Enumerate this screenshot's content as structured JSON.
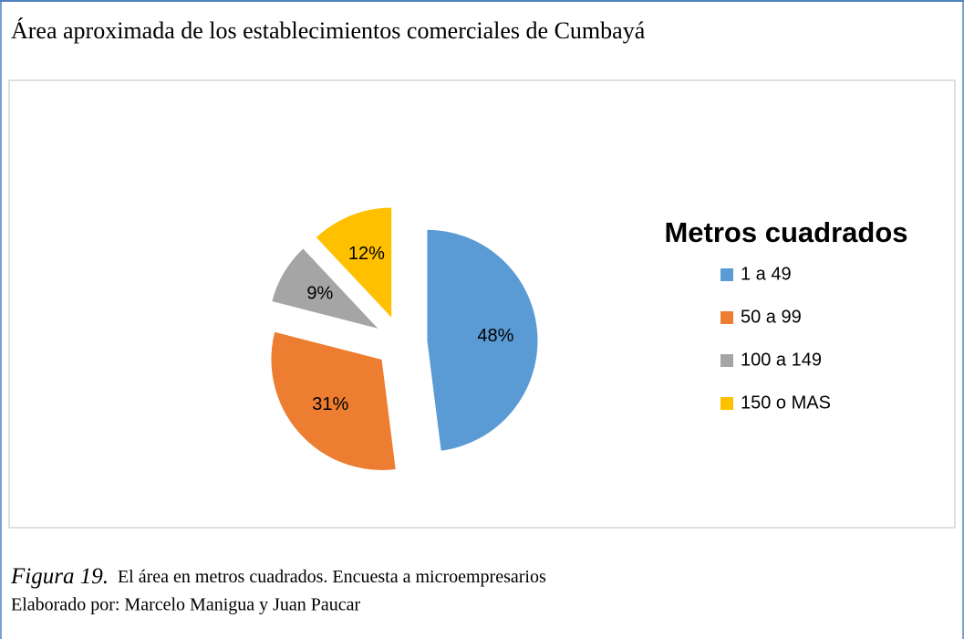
{
  "chart_data": {
    "type": "pie",
    "title": "Área aproximada de los establecimientos comerciales de Cumbayá",
    "legend_title": "Metros cuadrados",
    "categories": [
      "1 a 49",
      "50 a 99",
      "100 a 149",
      "150 o MAS"
    ],
    "values": [
      48,
      31,
      9,
      12
    ],
    "value_labels": [
      "48%",
      "31%",
      "9%",
      "12%"
    ],
    "colors": [
      "#5b9bd5",
      "#ed7d31",
      "#a5a5a5",
      "#ffc000"
    ],
    "legend": "right"
  },
  "caption": {
    "figure": "Figura 19.",
    "text": "El área en metros cuadrados. Encuesta a microempresarios",
    "credit": "Elaborado por: Marcelo Manigua y Juan Paucar"
  }
}
